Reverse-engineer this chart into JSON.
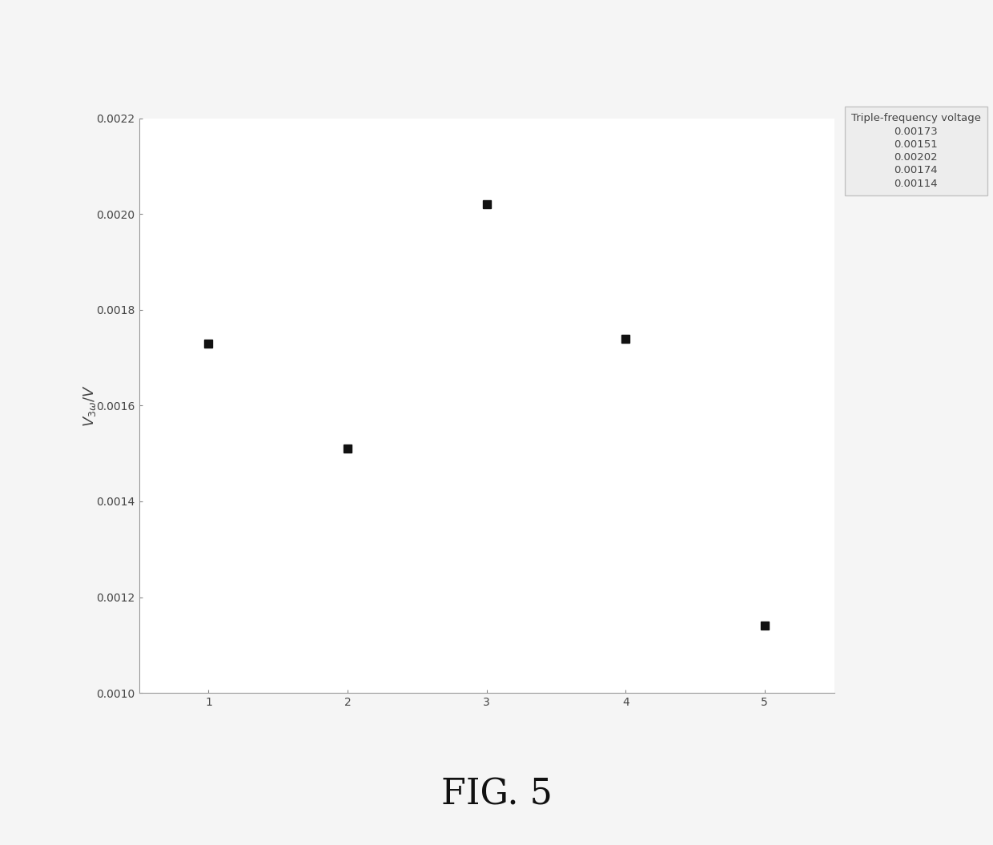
{
  "x": [
    1,
    2,
    3,
    4,
    5
  ],
  "y": [
    0.00173,
    0.00151,
    0.00202,
    0.00174,
    0.00114
  ],
  "xlim": [
    0.5,
    5.5
  ],
  "ylim": [
    0.001,
    0.0022
  ],
  "yticks": [
    0.001,
    0.0012,
    0.0014,
    0.0016,
    0.0018,
    0.002,
    0.0022
  ],
  "xticks": [
    1,
    2,
    3,
    4,
    5
  ],
  "ylabel": "V_{3ω}/V",
  "legend_title": "Triple-frequency voltage",
  "legend_labels": [
    "0.00173",
    "0.00151",
    "0.00202",
    "0.00174",
    "0.00114"
  ],
  "fig_caption": "FIG. 5",
  "marker_color": "#111111",
  "marker_size": 7,
  "background_color": "#ffffff",
  "axis_color": "#aaaaaa",
  "text_color": "#444444",
  "legend_bg": "#e8e8e8",
  "legend_edge": "#aaaaaa"
}
